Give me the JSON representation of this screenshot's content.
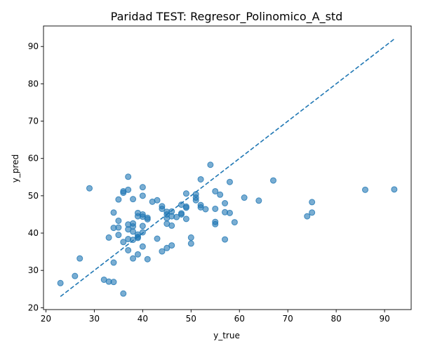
{
  "chart_data": {
    "type": "scatter",
    "title": "Paridad TEST: Regresor_Polinomico_A_std",
    "xlabel": "y_true",
    "ylabel": "y_pred",
    "xlim": [
      19.5,
      95.5
    ],
    "ylim": [
      19.5,
      95.5
    ],
    "xticks": [
      20,
      30,
      40,
      50,
      60,
      70,
      80,
      90
    ],
    "yticks": [
      20,
      30,
      40,
      50,
      60,
      70,
      80,
      90
    ],
    "xtick_labels": [
      "20",
      "30",
      "40",
      "50",
      "60",
      "70",
      "80",
      "90"
    ],
    "ytick_labels": [
      "20",
      "30",
      "40",
      "50",
      "60",
      "70",
      "80",
      "90"
    ],
    "grid": false,
    "point_color": "#1f77b4",
    "reference_line": {
      "style": "dashed",
      "from": [
        23,
        23
      ],
      "to": [
        92,
        92
      ]
    },
    "points": [
      {
        "x": 23,
        "y": 26.6
      },
      {
        "x": 26,
        "y": 28.5
      },
      {
        "x": 27,
        "y": 33.2
      },
      {
        "x": 29,
        "y": 52.0
      },
      {
        "x": 32,
        "y": 27.5
      },
      {
        "x": 33,
        "y": 27.0
      },
      {
        "x": 33,
        "y": 38.8
      },
      {
        "x": 34,
        "y": 26.9
      },
      {
        "x": 34,
        "y": 32.1
      },
      {
        "x": 34,
        "y": 41.4
      },
      {
        "x": 34,
        "y": 45.5
      },
      {
        "x": 35,
        "y": 39.5
      },
      {
        "x": 35,
        "y": 41.5
      },
      {
        "x": 35,
        "y": 43.3
      },
      {
        "x": 35,
        "y": 49.0
      },
      {
        "x": 36,
        "y": 23.8
      },
      {
        "x": 36,
        "y": 37.6
      },
      {
        "x": 36,
        "y": 50.8
      },
      {
        "x": 36,
        "y": 51.2
      },
      {
        "x": 37,
        "y": 35.4
      },
      {
        "x": 37,
        "y": 38.4
      },
      {
        "x": 37,
        "y": 41.0
      },
      {
        "x": 37,
        "y": 42.3
      },
      {
        "x": 37,
        "y": 51.6
      },
      {
        "x": 37,
        "y": 55.1
      },
      {
        "x": 38,
        "y": 33.2
      },
      {
        "x": 38,
        "y": 38.2
      },
      {
        "x": 38,
        "y": 40.4
      },
      {
        "x": 38,
        "y": 41.8
      },
      {
        "x": 38,
        "y": 42.6
      },
      {
        "x": 38,
        "y": 49.1
      },
      {
        "x": 39,
        "y": 34.3
      },
      {
        "x": 39,
        "y": 38.7
      },
      {
        "x": 39,
        "y": 39.0
      },
      {
        "x": 39,
        "y": 39.6
      },
      {
        "x": 39,
        "y": 44.5
      },
      {
        "x": 39,
        "y": 45.4
      },
      {
        "x": 40,
        "y": 36.4
      },
      {
        "x": 40,
        "y": 40.2
      },
      {
        "x": 40,
        "y": 41.9
      },
      {
        "x": 40,
        "y": 44.4
      },
      {
        "x": 40,
        "y": 45.0
      },
      {
        "x": 40,
        "y": 50.0
      },
      {
        "x": 40,
        "y": 52.3
      },
      {
        "x": 41,
        "y": 33.0
      },
      {
        "x": 41,
        "y": 43.7
      },
      {
        "x": 41,
        "y": 44.1
      },
      {
        "x": 42,
        "y": 48.4
      },
      {
        "x": 43,
        "y": 38.5
      },
      {
        "x": 43,
        "y": 48.8
      },
      {
        "x": 44,
        "y": 35.1
      },
      {
        "x": 44,
        "y": 46.5
      },
      {
        "x": 44,
        "y": 47.2
      },
      {
        "x": 45,
        "y": 36.0
      },
      {
        "x": 45,
        "y": 42.5
      },
      {
        "x": 45,
        "y": 44.0
      },
      {
        "x": 45,
        "y": 45.0
      },
      {
        "x": 45,
        "y": 45.7
      },
      {
        "x": 46,
        "y": 36.7
      },
      {
        "x": 46,
        "y": 42.0
      },
      {
        "x": 46,
        "y": 44.5
      },
      {
        "x": 46,
        "y": 45.8
      },
      {
        "x": 47,
        "y": 44.3
      },
      {
        "x": 48,
        "y": 45.0
      },
      {
        "x": 48,
        "y": 45.3
      },
      {
        "x": 48,
        "y": 47.6
      },
      {
        "x": 49,
        "y": 43.8
      },
      {
        "x": 49,
        "y": 46.8
      },
      {
        "x": 49,
        "y": 47.1
      },
      {
        "x": 49,
        "y": 50.6
      },
      {
        "x": 50,
        "y": 37.2
      },
      {
        "x": 50,
        "y": 38.8
      },
      {
        "x": 51,
        "y": 48.8
      },
      {
        "x": 51,
        "y": 49.5
      },
      {
        "x": 51,
        "y": 50.4
      },
      {
        "x": 52,
        "y": 46.9
      },
      {
        "x": 52,
        "y": 47.5
      },
      {
        "x": 52,
        "y": 54.4
      },
      {
        "x": 53,
        "y": 46.4
      },
      {
        "x": 54,
        "y": 58.3
      },
      {
        "x": 55,
        "y": 42.4
      },
      {
        "x": 55,
        "y": 43.0
      },
      {
        "x": 55,
        "y": 46.5
      },
      {
        "x": 55,
        "y": 51.2
      },
      {
        "x": 56,
        "y": 50.3
      },
      {
        "x": 57,
        "y": 38.3
      },
      {
        "x": 57,
        "y": 45.6
      },
      {
        "x": 57,
        "y": 48.0
      },
      {
        "x": 58,
        "y": 45.4
      },
      {
        "x": 58,
        "y": 53.7
      },
      {
        "x": 59,
        "y": 42.9
      },
      {
        "x": 61,
        "y": 49.5
      },
      {
        "x": 64,
        "y": 48.7
      },
      {
        "x": 67,
        "y": 54.1
      },
      {
        "x": 74,
        "y": 44.5
      },
      {
        "x": 75,
        "y": 45.5
      },
      {
        "x": 75,
        "y": 48.3
      },
      {
        "x": 86,
        "y": 51.6
      },
      {
        "x": 92,
        "y": 51.7
      }
    ]
  }
}
